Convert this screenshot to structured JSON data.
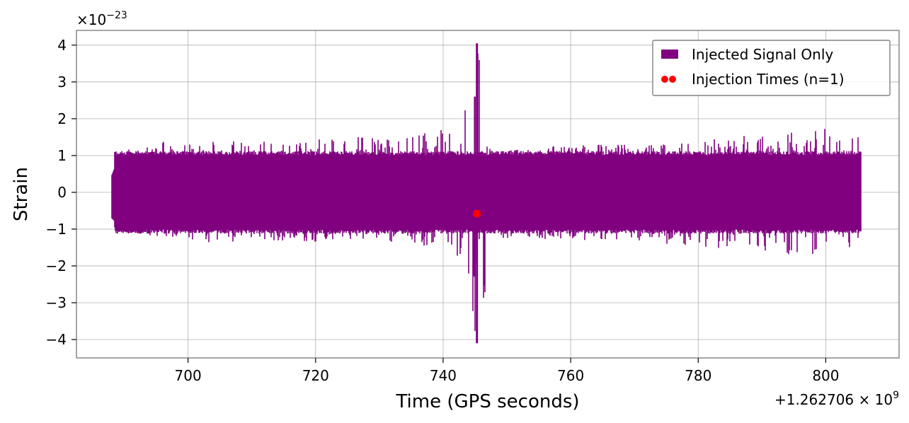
{
  "chart_data": {
    "type": "line",
    "xlabel": "Time (GPS seconds)",
    "ylabel": "Strain",
    "x_offset_label": "+1.262706 × 10",
    "x_offset_exponent": "9",
    "y_scale_label": "×10",
    "y_scale_exponent": "−23",
    "xlim": [
      682.5,
      811.5
    ],
    "ylim": [
      -4.5,
      4.4
    ],
    "xticks": [
      700,
      720,
      740,
      760,
      780,
      800
    ],
    "xtick_labels": [
      "700",
      "720",
      "740",
      "760",
      "780",
      "800"
    ],
    "yticks": [
      4,
      3,
      2,
      1,
      0,
      -1,
      -2,
      -3,
      -4
    ],
    "ytick_labels": [
      "4",
      "3",
      "2",
      "1",
      "0",
      "−1",
      "−2",
      "−3",
      "−4"
    ],
    "grid": true,
    "legend_position": "top-right",
    "series": [
      {
        "name": "Injected Signal Only",
        "color": "#800080",
        "x_range": [
          688,
          805.5
        ],
        "typical_envelope": [
          -1.1,
          1.1
        ],
        "peak_x": 745.3,
        "peak_max": 4.05,
        "peak_min": -4.1,
        "envelope_samples": [
          {
            "x": 688,
            "max": 0.45,
            "min": -0.7
          },
          {
            "x": 690,
            "max": 1.35,
            "min": -1.05
          },
          {
            "x": 695,
            "max": 1.4,
            "min": -1.2
          },
          {
            "x": 700,
            "max": 1.3,
            "min": -1.3
          },
          {
            "x": 705,
            "max": 1.4,
            "min": -1.4
          },
          {
            "x": 710,
            "max": 1.45,
            "min": -1.3
          },
          {
            "x": 720,
            "max": 1.5,
            "min": -1.35
          },
          {
            "x": 730,
            "max": 1.55,
            "min": -1.3
          },
          {
            "x": 735,
            "max": 1.6,
            "min": -1.45
          },
          {
            "x": 740,
            "max": 1.8,
            "min": -1.6
          },
          {
            "x": 743,
            "max": 2.0,
            "min": -1.8
          },
          {
            "x": 745.3,
            "max": 4.05,
            "min": -4.1
          },
          {
            "x": 748,
            "max": 1.1,
            "min": -1.25
          },
          {
            "x": 760,
            "max": 1.3,
            "min": -1.3
          },
          {
            "x": 770,
            "max": 1.3,
            "min": -1.3
          },
          {
            "x": 780,
            "max": 1.4,
            "min": -1.5
          },
          {
            "x": 790,
            "max": 1.6,
            "min": -1.6
          },
          {
            "x": 797,
            "max": 1.65,
            "min": -1.9
          },
          {
            "x": 800,
            "max": 1.95,
            "min": -1.8
          },
          {
            "x": 805.5,
            "max": 1.5,
            "min": -1.5
          }
        ]
      },
      {
        "name": "Injection Times (n=1)",
        "color": "#ff0000",
        "marker": "circle",
        "points": [
          {
            "x": 745.3,
            "y": -0.58
          }
        ]
      }
    ]
  }
}
